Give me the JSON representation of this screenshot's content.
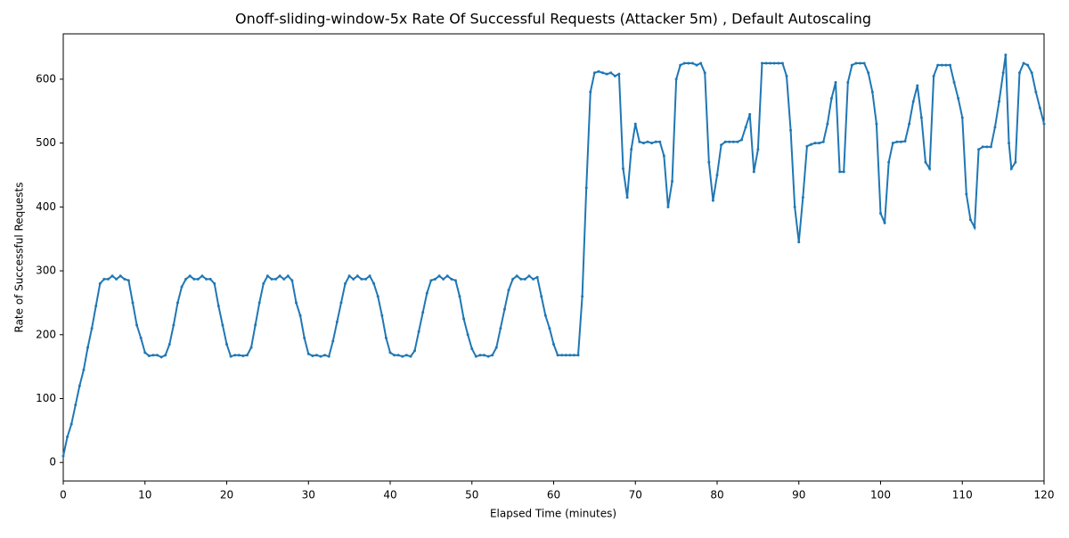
{
  "chart_data": {
    "type": "line",
    "title": "Onoff-sliding-window-5x Rate Of Successful Requests (Attacker 5m) , Default Autoscaling",
    "x_label": "Elapsed Time (minutes)",
    "y_label": "Rate of Successful Requests",
    "xlim": [
      0,
      120
    ],
    "ylim": [
      -29,
      671
    ],
    "xticks": [
      0,
      10,
      20,
      30,
      40,
      50,
      60,
      70,
      80,
      90,
      100,
      110,
      120
    ],
    "yticks": [
      0,
      100,
      200,
      300,
      400,
      500,
      600
    ],
    "grid": false,
    "x": [
      0,
      0.5,
      1,
      1.5,
      2,
      2.5,
      3,
      3.5,
      4,
      4.5,
      5,
      5.5,
      6,
      6.5,
      7,
      7.5,
      8,
      8.5,
      9,
      9.5,
      10,
      10.5,
      11,
      11.5,
      12,
      12.5,
      13,
      13.5,
      14,
      14.5,
      15,
      15.5,
      16,
      16.5,
      17,
      17.5,
      18,
      18.5,
      19,
      19.5,
      20,
      20.5,
      21,
      21.5,
      22,
      22.5,
      23,
      23.5,
      24,
      24.5,
      25,
      25.5,
      26,
      26.5,
      27,
      27.5,
      28,
      28.5,
      29,
      29.5,
      30,
      30.5,
      31,
      31.5,
      32,
      32.5,
      33,
      33.5,
      34,
      34.5,
      35,
      35.5,
      36,
      36.5,
      37,
      37.5,
      38,
      38.5,
      39,
      39.5,
      40,
      40.5,
      41,
      41.5,
      42,
      42.5,
      43,
      43.5,
      44,
      44.5,
      45,
      45.5,
      46,
      46.5,
      47,
      47.5,
      48,
      48.5,
      49,
      49.5,
      50,
      50.5,
      51,
      51.5,
      52,
      52.5,
      53,
      53.5,
      54,
      54.5,
      55,
      55.5,
      56,
      56.5,
      57,
      57.5,
      58,
      58.5,
      59,
      59.5,
      60,
      60.5,
      61,
      61.5,
      62,
      62.5,
      63,
      63.5,
      64,
      64.5,
      65,
      65.5,
      66,
      66.5,
      67,
      67.5,
      68,
      68.5,
      69,
      69.5,
      70,
      70.5,
      71,
      71.5,
      72,
      72.5,
      73,
      73.5,
      74,
      74.5,
      75,
      75.5,
      76,
      76.5,
      77,
      77.5,
      78,
      78.5,
      79,
      79.5,
      80,
      80.5,
      81,
      81.5,
      82,
      82.5,
      83,
      83.5,
      84,
      84.5,
      85,
      85.5,
      86,
      86.5,
      87,
      87.5,
      88,
      88.5,
      89,
      89.5,
      90,
      90.5,
      91,
      91.5,
      92,
      92.5,
      93,
      93.5,
      94,
      94.5,
      95,
      95.5,
      96,
      96.5,
      97,
      97.5,
      98,
      98.5,
      99,
      99.5,
      100,
      100.5,
      101,
      101.5,
      102,
      102.5,
      103,
      103.5,
      104,
      104.5,
      105,
      105.5,
      106,
      106.5,
      107,
      107.5,
      108,
      108.5,
      109,
      109.5,
      110,
      110.5,
      111,
      111.5,
      112,
      112.5,
      113,
      113.5,
      114,
      114.5,
      115,
      115.3,
      115.7,
      116,
      116.5,
      117,
      117.5,
      118,
      118.5,
      119,
      119.5,
      120
    ],
    "series": [
      {
        "color": "#1f77b4",
        "values": [
          10,
          40,
          60,
          90,
          120,
          145,
          180,
          210,
          245,
          280,
          287,
          287,
          292,
          287,
          292,
          287,
          285,
          250,
          215,
          195,
          172,
          167,
          168,
          168,
          165,
          168,
          185,
          215,
          250,
          275,
          287,
          292,
          287,
          287,
          292,
          287,
          287,
          280,
          245,
          215,
          185,
          166,
          168,
          168,
          167,
          168,
          180,
          215,
          250,
          280,
          292,
          287,
          287,
          292,
          287,
          292,
          285,
          250,
          230,
          195,
          170,
          167,
          168,
          166,
          168,
          166,
          190,
          220,
          250,
          280,
          292,
          287,
          292,
          287,
          287,
          292,
          280,
          260,
          230,
          195,
          172,
          168,
          168,
          166,
          168,
          166,
          175,
          205,
          235,
          265,
          285,
          287,
          292,
          287,
          292,
          287,
          285,
          260,
          225,
          200,
          178,
          166,
          168,
          168,
          166,
          168,
          180,
          210,
          240,
          270,
          287,
          292,
          287,
          287,
          292,
          287,
          290,
          260,
          230,
          210,
          185,
          168,
          168,
          168,
          168,
          168,
          168,
          260,
          430,
          580,
          610,
          612,
          610,
          608,
          610,
          605,
          608,
          460,
          415,
          490,
          530,
          502,
          500,
          502,
          500,
          502,
          502,
          480,
          400,
          440,
          600,
          622,
          625,
          625,
          625,
          622,
          625,
          610,
          470,
          410,
          450,
          497,
          502,
          502,
          502,
          502,
          505,
          525,
          545,
          455,
          490,
          625,
          625,
          625,
          625,
          625,
          625,
          605,
          520,
          400,
          345,
          415,
          495,
          498,
          500,
          500,
          502,
          530,
          570,
          595,
          455,
          455,
          595,
          622,
          625,
          625,
          625,
          610,
          580,
          530,
          390,
          375,
          470,
          500,
          502,
          502,
          503,
          530,
          565,
          590,
          540,
          470,
          460,
          605,
          622,
          622,
          622,
          622,
          595,
          570,
          540,
          420,
          380,
          368,
          490,
          494,
          494,
          494,
          525,
          565,
          610,
          638,
          500,
          460,
          470,
          610,
          625,
          622,
          610,
          580,
          555,
          530
        ]
      }
    ]
  }
}
